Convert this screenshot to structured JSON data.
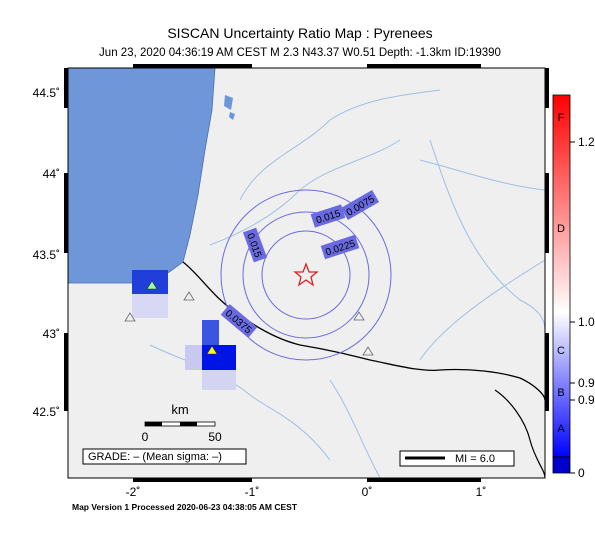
{
  "header": {
    "title": "SISCAN Uncertainty Ratio Map : Pyrenees",
    "subtitle": "Jun 23, 2020 04:36:19 AM CEST   M 2.3   N43.37 W0.51   Depth: -1.3km   ID:19390"
  },
  "map": {
    "lat_ticks": [
      "44.5˚",
      "44˚",
      "43.5˚",
      "43˚",
      "42.5˚"
    ],
    "lon_ticks": [
      "-2˚",
      "-1˚",
      "0˚",
      "1˚"
    ],
    "contour_labels": [
      "0.0075",
      "0.015",
      "0.0225",
      "0.015",
      "0.0375"
    ],
    "scale_bar": {
      "unit": "km",
      "start": "0",
      "end": "50"
    },
    "grade": "GRADE: – (Mean sigma: –)",
    "legend": "MI = 6.0"
  },
  "colorbar": {
    "grades": [
      "F",
      "D",
      "C",
      "B",
      "A"
    ],
    "values": [
      "1.2",
      "1.0",
      "0.9",
      "0.9",
      "0"
    ]
  },
  "footer": "Map Version 1 Processed 2020-06-23 04:38:05 AM CEST"
}
